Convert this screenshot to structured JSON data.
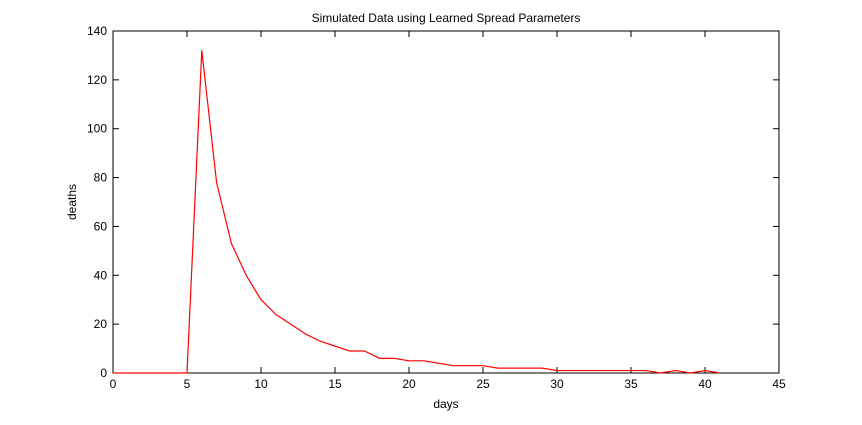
{
  "chart_data": {
    "type": "line",
    "title": "Simulated Data using Learned Spread Parameters",
    "xlabel": "days",
    "ylabel": "deaths",
    "xlim": [
      0,
      45
    ],
    "ylim": [
      0,
      140
    ],
    "xticks": [
      0,
      5,
      10,
      15,
      20,
      25,
      30,
      35,
      40,
      45
    ],
    "yticks": [
      0,
      20,
      40,
      60,
      80,
      100,
      120,
      140
    ],
    "grid": false,
    "series": [
      {
        "color": "#ff0000",
        "x": [
          0,
          1,
          2,
          3,
          4,
          5,
          6,
          7,
          8,
          9,
          10,
          11,
          12,
          13,
          14,
          15,
          16,
          17,
          18,
          19,
          20,
          21,
          22,
          23,
          24,
          25,
          26,
          27,
          28,
          29,
          30,
          31,
          32,
          33,
          34,
          35,
          36,
          37,
          38,
          39,
          40,
          41
        ],
        "y": [
          0,
          0,
          0,
          0,
          0,
          0,
          132,
          78,
          53,
          40,
          30,
          24,
          20,
          16,
          13,
          11,
          9,
          9,
          6,
          6,
          5,
          5,
          4,
          3,
          3,
          3,
          2,
          2,
          2,
          2,
          1,
          1,
          1,
          1,
          1,
          1,
          1,
          0,
          1,
          0,
          1,
          0
        ]
      }
    ]
  }
}
